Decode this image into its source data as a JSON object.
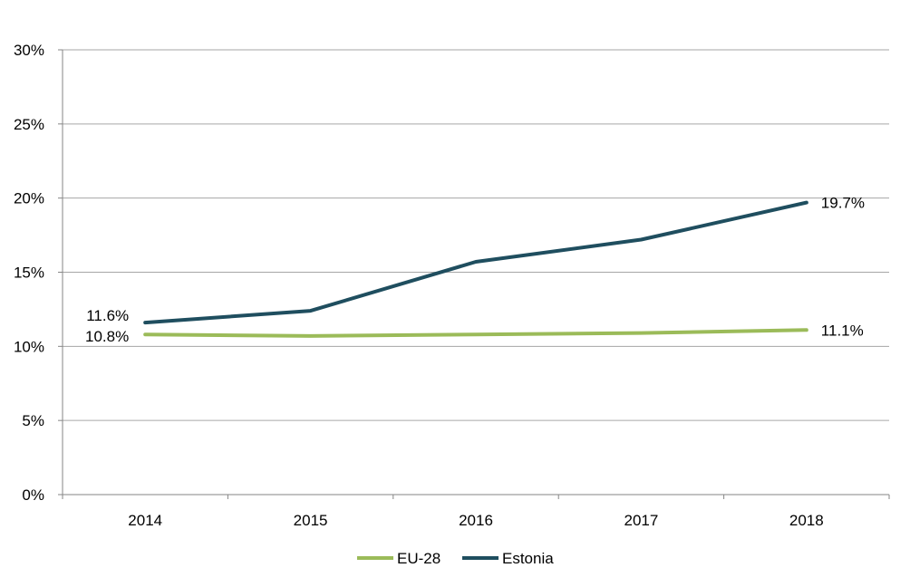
{
  "chart_data": {
    "type": "line",
    "title": "",
    "xlabel": "",
    "ylabel": "",
    "categories": [
      "2014",
      "2015",
      "2016",
      "2017",
      "2018"
    ],
    "ylim": [
      0,
      30
    ],
    "yticks": [
      "0%",
      "5%",
      "10%",
      "15%",
      "20%",
      "25%",
      "30%"
    ],
    "ytick_values": [
      0,
      5,
      10,
      15,
      20,
      25,
      30
    ],
    "grid": true,
    "legend_position": "bottom",
    "series": [
      {
        "name": "EU-28",
        "color": "#9bbb59",
        "values": [
          10.8,
          10.7,
          10.8,
          10.9,
          11.1
        ],
        "labels": [
          "10.8%",
          "",
          "",
          "",
          "11.1%"
        ]
      },
      {
        "name": "Estonia",
        "color": "#1f4e5f",
        "values": [
          11.6,
          12.4,
          15.7,
          17.2,
          19.7
        ],
        "labels": [
          "11.6%",
          "",
          "",
          "",
          "19.7%"
        ]
      }
    ]
  }
}
